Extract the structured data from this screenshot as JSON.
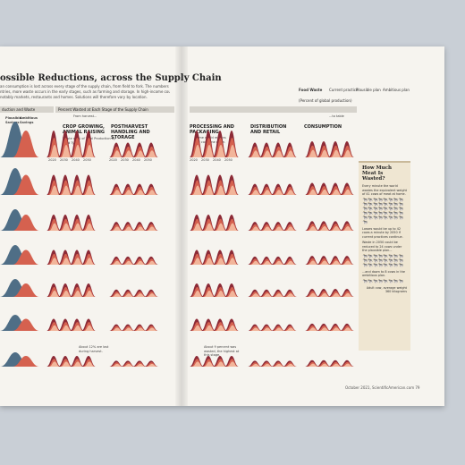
{
  "page": {
    "title": "ossible Reductions, across the Supply Chain",
    "intro_lines": [
      "an consumption is lost across every stage of the supply chain, from field to fork. The numbers here are",
      "ntries, more waste occurs in the early stages, such as farming and storage. In high-income countries,",
      "notably markets, restaurants and homes. Solutions will therefore vary by location."
    ],
    "folio": "October 2021, ScientificAmerican.com  79"
  },
  "legend": {
    "food_waste": "Food Waste",
    "subtitle": "(Percent of global production)",
    "current": "Current practice",
    "plausible": "Plausible plan",
    "ambitious": "Ambitious plan"
  },
  "bars": {
    "left": "duction and Waste",
    "middle": "Percent Wasted at Each Stage of the Supply Chain",
    "from": "From harvest...",
    "to": "...to table"
  },
  "left_column": {
    "plausible": "Plausible Savings",
    "ambitious": "Ambitious Savings",
    "year": "2050"
  },
  "stages": [
    "CROP GROWING, ANIMAL RAISING",
    "POSTHARVEST HANDLING AND STORAGE",
    "PROCESSING AND PACKAGING",
    "DISTRIBUTION AND RETAIL",
    "CONSUMPTION"
  ],
  "stage_note": "Waste as % of Total Production by Food Type",
  "years": [
    "2020",
    "2030",
    "2040",
    "2050"
  ],
  "notes": {
    "processing": "Some world regions will consume more.",
    "crop_bottom": "About 12% are lost during harvest.",
    "proc_bottom": "About 9 percent was wasted, the highest at this stage."
  },
  "sidebar": {
    "title": "How Much Meat Is Wasted?",
    "text1": "Every minute the world wastes the equivalent weight of 41 cows of meat at home.",
    "text2": "Losses would be up to 42 cows a minute by 2050 if current practices continue.",
    "text3": "Waste in 2050 could be reduced to 24 cows under the plausible plan...",
    "text4": "...and down to 8 cows in the ambitious plan.",
    "adult_note": "Adult cow, average weight 360 kilograms",
    "cow_glyph": "🐄"
  },
  "colors": {
    "current": "#8c2a36",
    "plausible": "#d5614f",
    "ambitious": "#f2b59a",
    "left_blue": "#4f6e86"
  }
}
